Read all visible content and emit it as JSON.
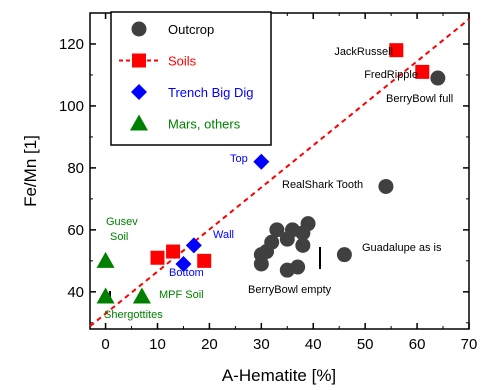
{
  "chart_data": {
    "type": "scatter",
    "xlabel": "A-Hematite [%]",
    "ylabel": "Fe/Mn [1]",
    "xlim": [
      -3,
      70
    ],
    "ylim": [
      28,
      130
    ],
    "xticks": [
      0,
      10,
      20,
      30,
      40,
      50,
      60,
      70
    ],
    "yticks": [
      40,
      60,
      80,
      100,
      120
    ],
    "grid": false,
    "legend_position": "top-left",
    "colors": {
      "outcrop": "#404040",
      "soils": "#ff0000",
      "trench": "#0000ff",
      "mars": "#008000"
    },
    "series": [
      {
        "name": "Outcrop",
        "marker": "circle",
        "color": "#404040",
        "points": [
          {
            "x": 64,
            "y": 109
          },
          {
            "x": 54,
            "y": 74
          },
          {
            "x": 46,
            "y": 52
          },
          {
            "x": 33,
            "y": 60
          },
          {
            "x": 39,
            "y": 62
          },
          {
            "x": 36,
            "y": 60
          },
          {
            "x": 38,
            "y": 59
          },
          {
            "x": 32,
            "y": 56
          },
          {
            "x": 35,
            "y": 57
          },
          {
            "x": 31,
            "y": 53
          },
          {
            "x": 30,
            "y": 52
          },
          {
            "x": 38,
            "y": 55
          },
          {
            "x": 30,
            "y": 49
          },
          {
            "x": 37,
            "y": 48
          },
          {
            "x": 35,
            "y": 47
          }
        ]
      },
      {
        "name": "Soils",
        "marker": "square",
        "color": "#ff0000",
        "points": [
          {
            "x": 56,
            "y": 118
          },
          {
            "x": 61,
            "y": 111
          },
          {
            "x": 10,
            "y": 51
          },
          {
            "x": 13,
            "y": 53
          },
          {
            "x": 19,
            "y": 50
          }
        ]
      },
      {
        "name": "Trench Big Dig",
        "marker": "diamond",
        "color": "#0000ff",
        "points": [
          {
            "x": 30,
            "y": 82
          },
          {
            "x": 17,
            "y": 55
          },
          {
            "x": 15,
            "y": 49
          }
        ]
      },
      {
        "name": "Mars, others",
        "marker": "triangle",
        "color": "#008000",
        "points": [
          {
            "x": 0,
            "y": 50
          },
          {
            "x": 0,
            "y": 38.5
          },
          {
            "x": 7,
            "y": 38.5
          }
        ]
      }
    ],
    "fit_line": {
      "x": [
        -3,
        70
      ],
      "y": [
        28.9,
        128
      ]
    },
    "annotations": {
      "jackrussell": "JackRussell",
      "fredripple": "FredRipple",
      "berrybowl_full": "BerryBowl full",
      "top": "Top",
      "realshark": "RealShark Tooth",
      "gusev1": "Gusev",
      "gusev2": "Soil",
      "wall": "Wall",
      "guadalupe": "Guadalupe as is",
      "bottom": "Bottom",
      "berrybowl_empty": "BerryBowl empty",
      "mpf": "MPF Soil",
      "shergottites": "Shergottites"
    }
  }
}
